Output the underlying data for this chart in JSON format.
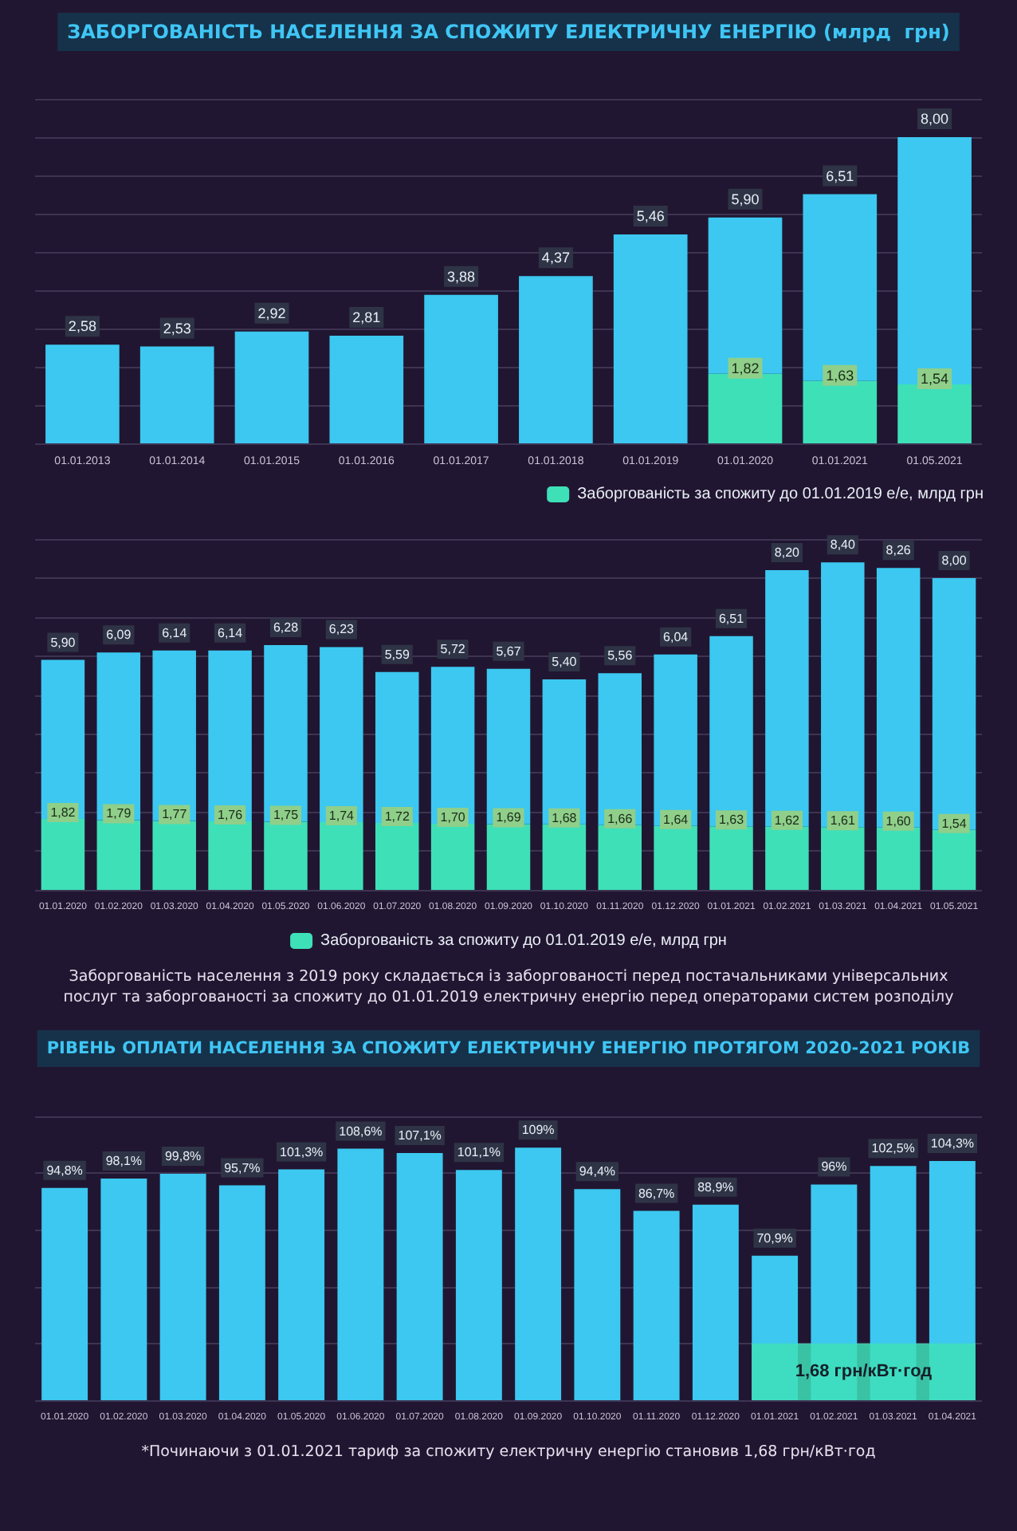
{
  "chart_data": [
    {
      "type": "bar",
      "title": "ЗАБОРГОВАНІСТЬ НАСЕЛЕННЯ ЗА СПОЖИТУ ЕЛЕКТРИЧНУ ЕНЕРГІЮ (млрд  грн)",
      "categories": [
        "01.01.2013",
        "01.01.2014",
        "01.01.2015",
        "01.01.2016",
        "01.01.2017",
        "01.01.2018",
        "01.01.2019",
        "01.01.2020",
        "01.01.2021",
        "01.05.2021"
      ],
      "stacked": true,
      "series": [
        {
          "name": "Заборгованість за спожиту до 01.01.2019 е/е, млрд грн",
          "color": "#3ee0b8",
          "values": [
            null,
            null,
            null,
            null,
            null,
            null,
            null,
            1.82,
            1.63,
            1.54
          ],
          "value_labels": [
            null,
            null,
            null,
            null,
            null,
            null,
            null,
            "1,82",
            "1,63",
            "1,54"
          ]
        },
        {
          "color": "#3cc8f0",
          "values": [
            2.58,
            2.53,
            2.92,
            2.81,
            3.88,
            4.37,
            5.46,
            4.08,
            4.88,
            6.46
          ]
        }
      ],
      "totals": [
        "2,58",
        "2,53",
        "2,92",
        "2,81",
        "3,88",
        "4,37",
        "5,46",
        "5,90",
        "6,51",
        "8,00"
      ],
      "ylim": [
        0,
        9
      ],
      "yticks": [
        0,
        1,
        2,
        3,
        4,
        5,
        6,
        7,
        8,
        9
      ],
      "grid": "y",
      "tick_labels": "x",
      "legend": "bottom right"
    },
    {
      "type": "bar",
      "categories": [
        "01.01.2020",
        "01.02.2020",
        "01.03.2020",
        "01.04.2020",
        "01.05.2020",
        "01.06.2020",
        "01.07.2020",
        "01.08.2020",
        "01.09.2020",
        "01.10.2020",
        "01.11.2020",
        "01.12.2020",
        "01.01.2021",
        "01.02.2021",
        "01.03.2021",
        "01.04.2021",
        "01.05.2021"
      ],
      "stacked": true,
      "series": [
        {
          "name": "Заборгованість за спожиту до 01.01.2019 е/е, млрд грн",
          "color": "#3ee0b8",
          "values": [
            1.82,
            1.79,
            1.77,
            1.76,
            1.75,
            1.74,
            1.72,
            1.7,
            1.69,
            1.68,
            1.66,
            1.64,
            1.63,
            1.62,
            1.61,
            1.6,
            1.54
          ],
          "value_labels": [
            "1,82",
            "1,79",
            "1,77",
            "1,76",
            "1,75",
            "1,74",
            "1,72",
            "1,70",
            "1,69",
            "1,68",
            "1,66",
            "1,64",
            "1,63",
            "1,62",
            "1,61",
            "1,60",
            "1,54"
          ]
        },
        {
          "color": "#3cc8f0",
          "values": [
            4.08,
            4.3,
            4.37,
            4.38,
            4.53,
            4.49,
            3.87,
            4.02,
            3.98,
            3.72,
            3.9,
            4.4,
            4.88,
            6.58,
            6.79,
            6.66,
            6.46
          ]
        }
      ],
      "totals": [
        "5,90",
        "6,09",
        "6,14",
        "6,14",
        "6,28",
        "6,23",
        "5,59",
        "5,72",
        "5,67",
        "5,40",
        "5,56",
        "6,04",
        "6,51",
        "8,20",
        "8,40",
        "8,26",
        "8,00"
      ],
      "ylim": [
        0,
        9
      ],
      "yticks": [
        0,
        1,
        2,
        3,
        4,
        5,
        6,
        7,
        8,
        9
      ],
      "grid": "y",
      "tick_labels": "x",
      "legend": "bottom",
      "annotations": [
        "Заборгованість населення з 2019 року складається із заборгованості перед постачальниками універсальних послуг та заборгованості за спожиту до 01.01.2019 електричну енергію перед операторами систем розподілу"
      ]
    },
    {
      "type": "bar",
      "title": "РІВЕНЬ ОПЛАТИ НАСЕЛЕННЯ ЗА СПОЖИТУ ЕЛЕКТРИЧНУ ЕНЕРГІЮ ПРОТЯГОМ 2020-2021 РОКІВ",
      "categories": [
        "01.01.2020",
        "01.02.2020",
        "01.03.2020",
        "01.04.2020",
        "01.05.2020",
        "01.06.2020",
        "01.07.2020",
        "01.08.2020",
        "01.09.2020",
        "01.10.2020",
        "01.11.2020",
        "01.12.2020",
        "01.01.2021",
        "01.02.2021",
        "01.03.2021",
        "01.04.2021"
      ],
      "series": [
        {
          "color": "#3cc8f0",
          "values": [
            94.8,
            98.1,
            99.8,
            95.7,
            101.3,
            108.6,
            107.1,
            101.1,
            109,
            94.4,
            86.7,
            88.9,
            70.9,
            96,
            102.5,
            104.3
          ],
          "value_labels": [
            "94,8%",
            "98,1%",
            "99,8%",
            "95,7%",
            "101,3%",
            "108,6%",
            "107,1%",
            "101,1%",
            "109%",
            "94,4%",
            "86,7%",
            "88,9%",
            "70,9%",
            "96%",
            "102,5%",
            "104,3%"
          ]
        }
      ],
      "ylim": [
        20,
        120
      ],
      "yticks": [
        20,
        40,
        60,
        80,
        100,
        120
      ],
      "grid": "y",
      "tick_labels": "x",
      "bands": [
        {
          "axis": "x",
          "from": "01.01.2021",
          "to": "01.04.2021",
          "label": "1,68 грн/кВт·год",
          "color": "#3ee0b8"
        }
      ],
      "annotations": [
        "*Починаючи з 01.01.2021 тариф за спожиту електричну енергію становив 1,68 грн/кВт·год"
      ]
    }
  ]
}
